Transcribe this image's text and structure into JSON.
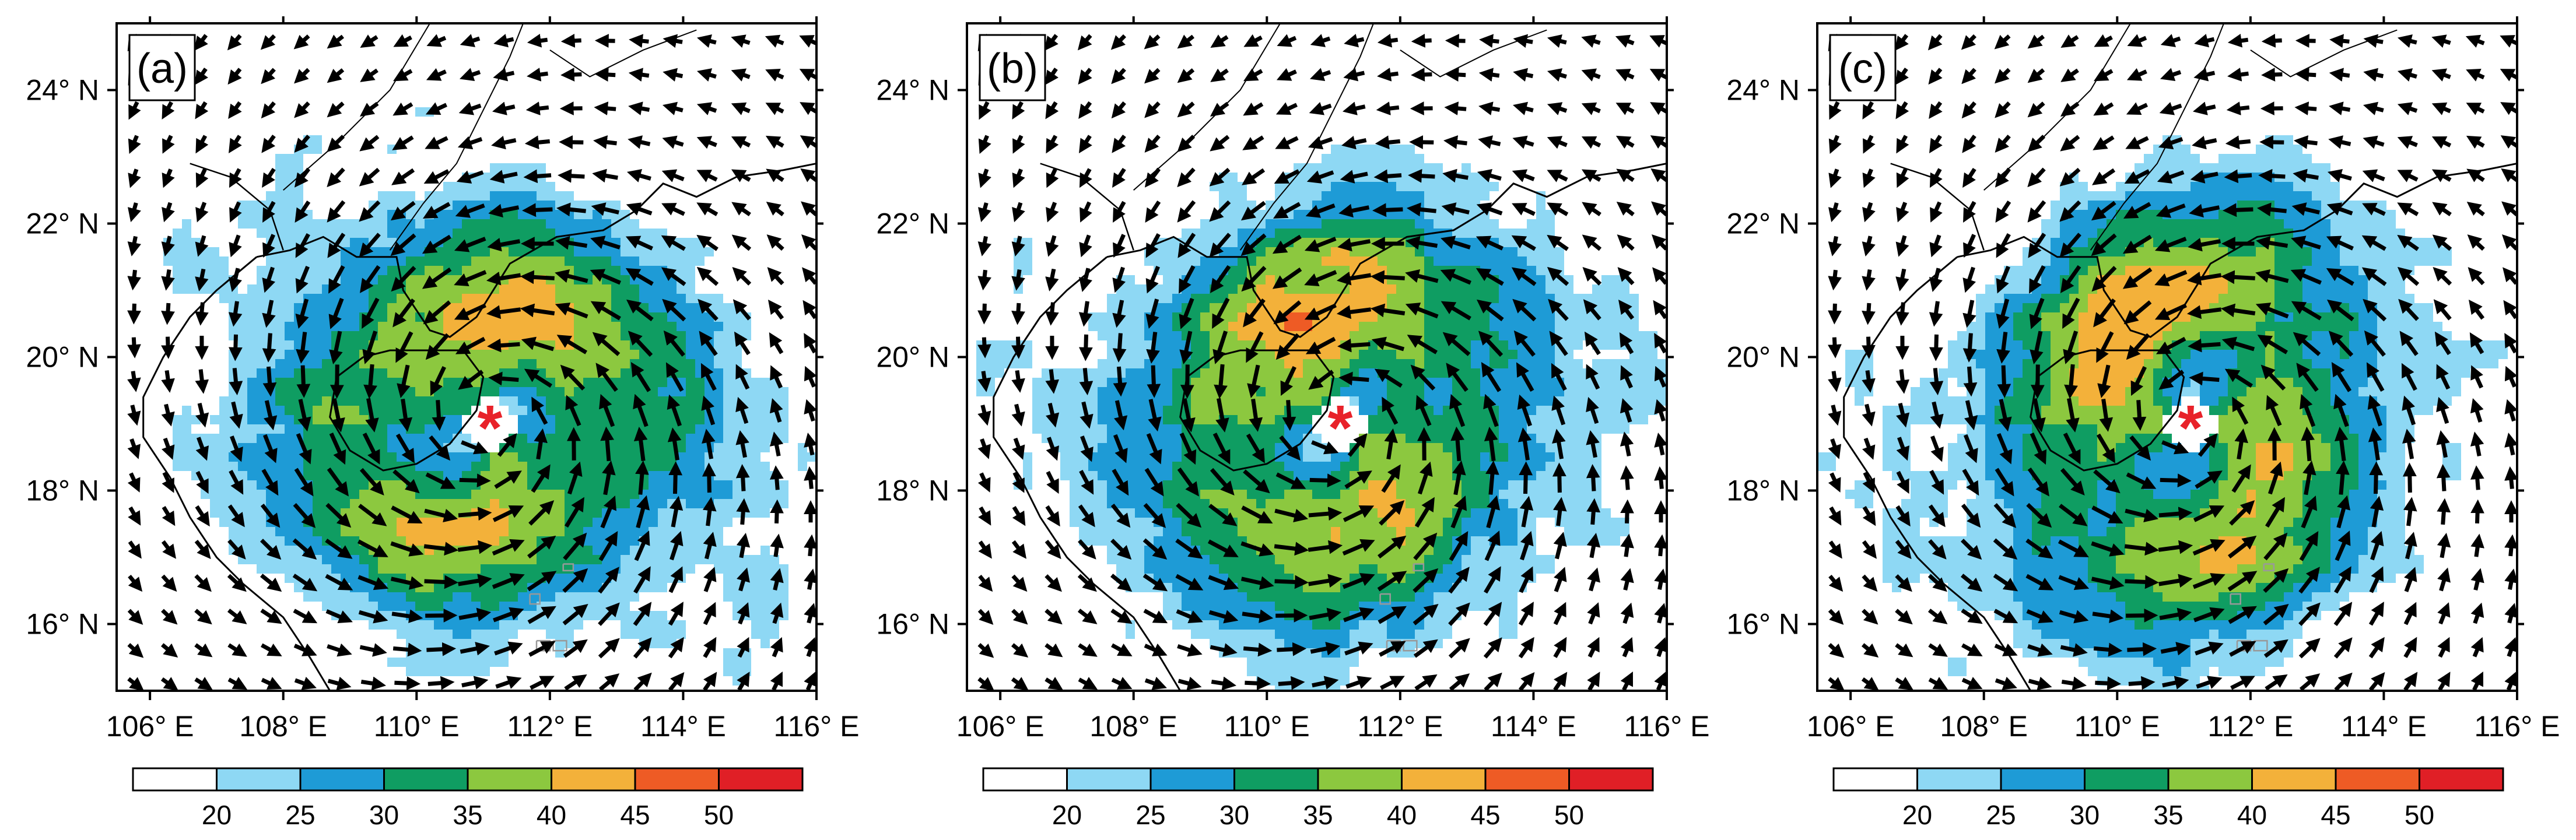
{
  "panels": [
    {
      "label": "(a)",
      "center": {
        "lon": 111.1,
        "lat": 19.0
      },
      "max_level": 40
    },
    {
      "label": "(b)",
      "center": {
        "lon": 111.1,
        "lat": 19.0
      },
      "max_level": 45
    },
    {
      "label": "(c)",
      "center": {
        "lon": 111.1,
        "lat": 19.0
      },
      "max_level": 40
    }
  ],
  "map": {
    "lon_range": [
      105.5,
      116
    ],
    "lat_range": [
      15,
      25
    ],
    "lon_ticks": [
      "106° E",
      "108° E",
      "110° E",
      "112° E",
      "114° E",
      "116° E"
    ],
    "lon_tick_values": [
      106,
      108,
      110,
      112,
      114,
      116
    ],
    "lat_ticks": [
      "16° N",
      "18° N",
      "20° N",
      "22° N",
      "24° N"
    ],
    "lat_tick_values": [
      16,
      18,
      20,
      22,
      24
    ]
  },
  "colorbar": {
    "labels": [
      "20",
      "25",
      "30",
      "35",
      "40",
      "45",
      "50"
    ],
    "colors": [
      "#ffffff",
      "#8ed8f4",
      "#1e9bd6",
      "#0f9d62",
      "#8cc83f",
      "#f3b13a",
      "#ee5b25",
      "#e01f26"
    ]
  },
  "marker": {
    "symbol": "*",
    "color": "#e8222a"
  }
}
